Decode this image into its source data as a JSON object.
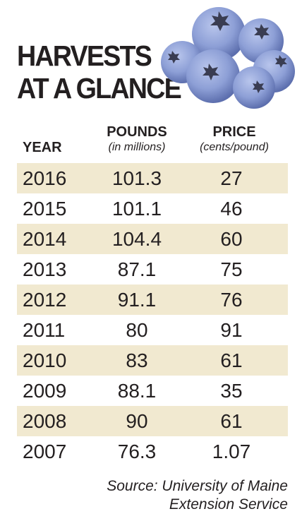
{
  "title": {
    "line1": "HARVESTS",
    "line2": "AT A GLANCE"
  },
  "illustration": {
    "icon": "blueberries-icon",
    "colors": {
      "berry": "#8d9fd6",
      "berry_shadow": "#5d6fae",
      "calyx": "#3a3d52"
    }
  },
  "chart_data": {
    "type": "table",
    "columns": [
      {
        "key": "year",
        "label": "YEAR",
        "sublabel": ""
      },
      {
        "key": "pounds",
        "label": "POUNDS",
        "sublabel": "(in millions)"
      },
      {
        "key": "price",
        "label": "PRICE",
        "sublabel": "(cents/pound)"
      }
    ],
    "rows": [
      {
        "year": "2016",
        "pounds": "101.3",
        "price": "27"
      },
      {
        "year": "2015",
        "pounds": "101.1",
        "price": "46"
      },
      {
        "year": "2014",
        "pounds": "104.4",
        "price": "60"
      },
      {
        "year": "2013",
        "pounds": "87.1",
        "price": "75"
      },
      {
        "year": "2012",
        "pounds": "91.1",
        "price": "76"
      },
      {
        "year": "2011",
        "pounds": "80",
        "price": "91"
      },
      {
        "year": "2010",
        "pounds": "83",
        "price": "61"
      },
      {
        "year": "2009",
        "pounds": "88.1",
        "price": "35"
      },
      {
        "year": "2008",
        "pounds": "90",
        "price": "61"
      },
      {
        "year": "2007",
        "pounds": "76.3",
        "price": "1.07"
      }
    ],
    "row_shade_color": "#f1e9d0"
  },
  "source": {
    "line1": "Source: University of Maine",
    "line2": "Extension Service"
  }
}
